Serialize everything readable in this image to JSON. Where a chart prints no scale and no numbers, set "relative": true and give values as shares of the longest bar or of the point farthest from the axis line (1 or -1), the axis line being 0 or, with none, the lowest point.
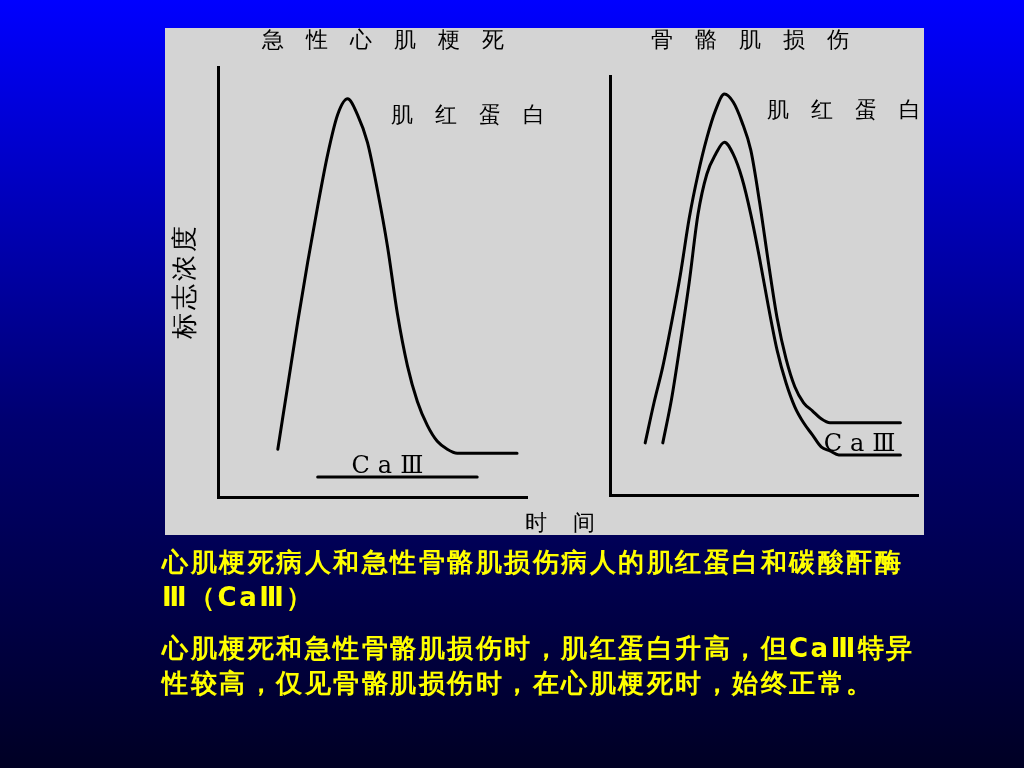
{
  "chart_data": [
    {
      "type": "line",
      "title": "急性心肌梗死",
      "ylabel": "标志浓度",
      "xlabel": "时间",
      "relative": true,
      "marker": "none",
      "categories": [
        null,
        null,
        null,
        null,
        null,
        null,
        null,
        null,
        null,
        null,
        null,
        null,
        null,
        null,
        null,
        null,
        null,
        null,
        null,
        null,
        null,
        null,
        null,
        null,
        null,
        null,
        null,
        null,
        null,
        null,
        null,
        null
      ],
      "series": [
        {
          "name": "肌红蛋白",
          "color": "#000000",
          "values": [
            null,
            null,
            null,
            null,
            null,
            null,
            0.12,
            0.28,
            0.44,
            0.59,
            0.73,
            0.86,
            0.96,
            1,
            0.96,
            0.89,
            0.77,
            0.63,
            0.46,
            0.33,
            0.24,
            0.18,
            0.14,
            0.12,
            0.11,
            0.11,
            0.11,
            0.11,
            0.11,
            0.11,
            0.11,
            null
          ]
        },
        {
          "name": "CaⅢ",
          "color": "#000000",
          "values": [
            null,
            null,
            null,
            null,
            null,
            null,
            null,
            null,
            null,
            null,
            0.05,
            0.05,
            0.05,
            0.05,
            0.05,
            0.05,
            0.05,
            0.05,
            0.05,
            0.05,
            0.05,
            0.05,
            0.05,
            0.05,
            0.05,
            0.05,
            0.05,
            null,
            null,
            null,
            null,
            null
          ]
        }
      ]
    },
    {
      "type": "line",
      "title": "骨骼肌损伤",
      "relative": true,
      "marker": "none",
      "categories": [
        null,
        null,
        null,
        null,
        null,
        null,
        null,
        null,
        null,
        null,
        null,
        null,
        null,
        null,
        null,
        null,
        null,
        null,
        null,
        null,
        null,
        null,
        null,
        null,
        null,
        null,
        null,
        null,
        null,
        null,
        null,
        null,
        null,
        null,
        null,
        null
      ],
      "series": [
        {
          "name": "肌红蛋白",
          "color": "#000000",
          "values": [
            null,
            null,
            null,
            null,
            0.13,
            0.23,
            0.32,
            0.43,
            0.55,
            0.69,
            0.8,
            0.89,
            0.96,
            1,
            0.98,
            0.93,
            0.86,
            0.73,
            0.58,
            0.44,
            0.34,
            0.27,
            0.23,
            0.21,
            0.19,
            0.18,
            0.18,
            0.18,
            0.18,
            0.18,
            0.18,
            0.18,
            0.18,
            0.18,
            null,
            null
          ]
        },
        {
          "name": "CaⅢ",
          "color": "#000000",
          "values": [
            null,
            null,
            null,
            null,
            null,
            null,
            0.13,
            0.24,
            0.38,
            0.53,
            0.7,
            0.8,
            0.85,
            0.88,
            0.85,
            0.79,
            0.7,
            0.59,
            0.47,
            0.36,
            0.28,
            0.22,
            0.18,
            0.15,
            0.12,
            0.11,
            0.1,
            0.1,
            0.1,
            0.1,
            0.1,
            0.1,
            0.1,
            0.1,
            null,
            null
          ]
        }
      ]
    },
    {
      "type": "other",
      "annotations": [
        "心肌梗死病人和急性骨骼肌损伤病人的肌红蛋白和碳酸酐酶Ⅲ（CaⅢ）",
        "心肌梗死和急性骨骼肌损伤时，肌红蛋白升高，但CaⅢ特异性较高，仅见骨骼肌损伤时，在心肌梗死时，始终正常。"
      ]
    }
  ]
}
